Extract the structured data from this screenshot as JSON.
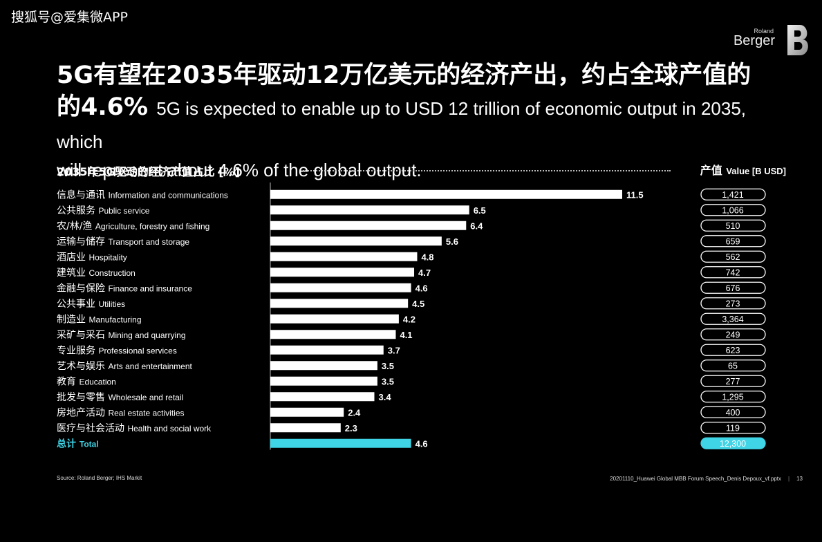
{
  "watermark": "搜狐号@爱集微APP",
  "logo": {
    "line1": "Roland",
    "line2": "Berger"
  },
  "headline": {
    "zh_line1": "5G有望在2035年驱动12万亿美元的经济产出，约占全球产值的",
    "zh_line2": "的4.6%",
    "en_part1": "5G is expected to enable up to USD 12 trillion of economic output in 2035, which",
    "en_part2": "will represent about 4.6% of the global output."
  },
  "chart_data": {
    "type": "bar",
    "orientation": "horizontal",
    "title": "2035年5G驱动的经济产值占比 [%]",
    "value_column_title_zh": "产值",
    "value_column_title_en": "Value [B USD]",
    "xlim": [
      0,
      12
    ],
    "categories": [
      {
        "zh": "信息与通讯",
        "en": "Information and communications"
      },
      {
        "zh": "公共服务",
        "en": "Public service"
      },
      {
        "zh": "农/林/渔",
        "en": "Agriculture, forestry and fishing"
      },
      {
        "zh": "运输与储存",
        "en": "Transport and storage"
      },
      {
        "zh": "酒店业",
        "en": "Hospitality"
      },
      {
        "zh": "建筑业",
        "en": "Construction"
      },
      {
        "zh": "金融与保险",
        "en": "Finance and insurance"
      },
      {
        "zh": "公共事业",
        "en": "Utilities"
      },
      {
        "zh": "制造业",
        "en": "Manufacturing"
      },
      {
        "zh": "采矿与采石",
        "en": "Mining and quarrying"
      },
      {
        "zh": "专业服务",
        "en": "Professional services"
      },
      {
        "zh": "艺术与娱乐",
        "en": "Arts and entertainment"
      },
      {
        "zh": "教育",
        "en": "Education"
      },
      {
        "zh": "批发与零售",
        "en": "Wholesale and retail"
      },
      {
        "zh": "房地产活动",
        "en": "Real estate activities"
      },
      {
        "zh": "医疗与社会活动",
        "en": "Health and social work"
      }
    ],
    "values": [
      11.5,
      6.5,
      6.4,
      5.6,
      4.8,
      4.7,
      4.6,
      4.5,
      4.2,
      4.1,
      3.7,
      3.5,
      3.5,
      3.4,
      2.4,
      2.3
    ],
    "value_labels": [
      "11.5",
      "6.5",
      "6.4",
      "5.6",
      "4.8",
      "4.7",
      "4.6",
      "4.5",
      "4.2",
      "4.1",
      "3.7",
      "3.5",
      "3.5",
      "3.4",
      "2.4",
      "2.3"
    ],
    "output_b_usd": [
      "1,421",
      "1,066",
      "510",
      "659",
      "562",
      "742",
      "676",
      "273",
      "3,364",
      "249",
      "623",
      "65",
      "277",
      "1,295",
      "400",
      "119"
    ],
    "total": {
      "zh": "总计",
      "en": "Total",
      "value": 4.6,
      "value_label": "4.6",
      "output_b_usd": "12,300"
    },
    "colors": {
      "bar": "#ffffff",
      "total_bar": "#3fd4e6",
      "total_label": "#3fd4e6"
    }
  },
  "footer": {
    "source": "Source: Roland Berger; IHS Markit",
    "file": "20201110_Huawei Global MBB Forum Speech_Denis Depoux_vf.pptx",
    "page": "13"
  }
}
